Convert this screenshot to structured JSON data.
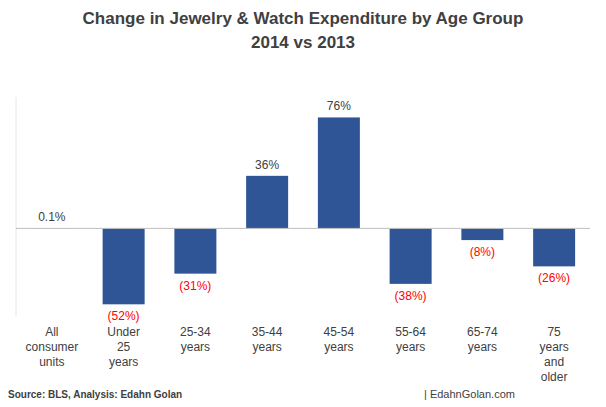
{
  "chart_data": {
    "type": "bar",
    "title": "Change in Jewelry & Watch Expenditure by Age Group",
    "subtitle": "2014 vs 2013",
    "categories": [
      "All consumer units",
      "Under 25 years",
      "25-34 years",
      "35-44 years",
      "45-54 years",
      "55-64 years",
      "65-74 years",
      "75 years and older"
    ],
    "values": [
      0.1,
      -52,
      -31,
      36,
      76,
      -38,
      -8,
      -26
    ],
    "value_labels": [
      "0.1%",
      "(52%)",
      "(31%)",
      "36%",
      "76%",
      "(38%)",
      "(8%)",
      "(26%)"
    ],
    "color": "#2f5597",
    "ylim": [
      -60,
      90
    ],
    "yticks": [
      0
    ],
    "grid": false,
    "tick_labels": false,
    "data_labels": true,
    "annotations": [
      "Source: BLS, Analysis: Edahn Golan",
      "| EdahnGolan.com"
    ]
  }
}
